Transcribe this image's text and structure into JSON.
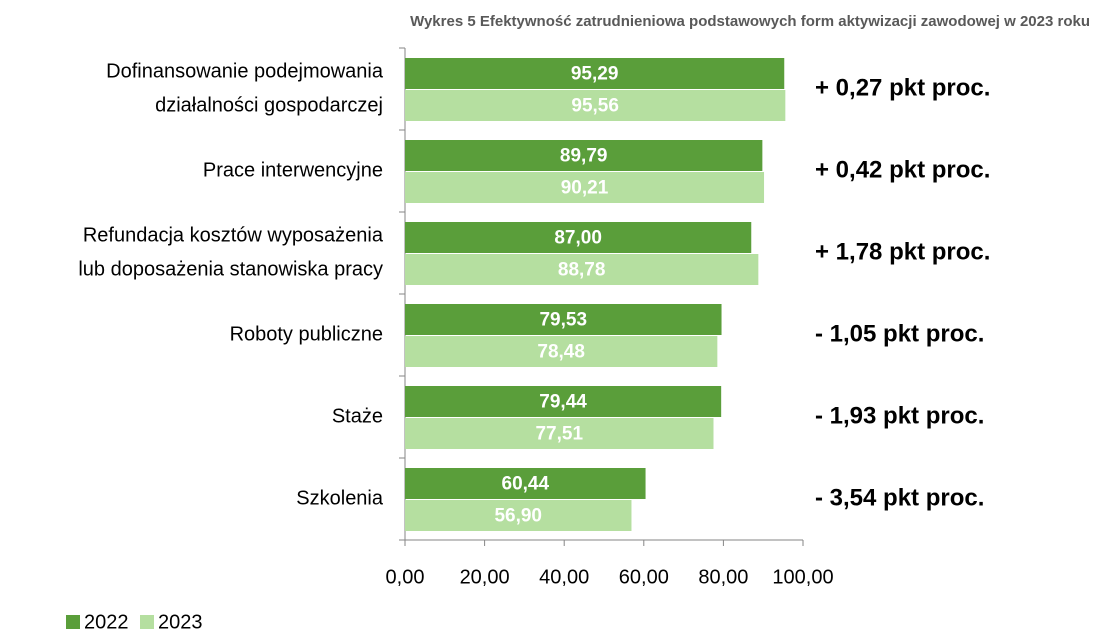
{
  "chart_data": {
    "type": "hbar",
    "title": "Wykres 5 Efektywność zatrudnieniowa podstawowych form aktywizacji zawodowej w 2023 roku",
    "categories": [
      [
        "Dofinansowanie podejmowania",
        "działalności gospodarczej"
      ],
      [
        "Prace interwencyjne"
      ],
      [
        "Refundacja kosztów wyposażenia",
        "lub doposażenia stanowiska pracy"
      ],
      [
        "Roboty publiczne"
      ],
      [
        "Staże"
      ],
      [
        "Szkolenia"
      ]
    ],
    "series": [
      {
        "name": "2022",
        "color": "#5a9e3a",
        "values": [
          95.29,
          89.79,
          87.0,
          79.53,
          79.44,
          60.44
        ],
        "value_labels": [
          "95,29",
          "89,79",
          "87,00",
          "79,53",
          "79,44",
          "60,44"
        ]
      },
      {
        "name": "2023",
        "color": "#b5dfa0",
        "values": [
          95.56,
          90.21,
          88.78,
          78.48,
          77.51,
          56.9
        ],
        "value_labels": [
          "95,56",
          "90,21",
          "88,78",
          "78,48",
          "77,51",
          "56,90"
        ]
      }
    ],
    "annotations": [
      "+ 0,27 pkt proc.",
      "+ 0,42 pkt proc.",
      "+ 1,78 pkt proc.",
      "- 1,05 pkt proc.",
      "- 1,93 pkt proc.",
      "- 3,54 pkt proc."
    ],
    "xlim": [
      0,
      100
    ],
    "xticks": [
      {
        "value": 0,
        "label": "0,00"
      },
      {
        "value": 20,
        "label": "20,00"
      },
      {
        "value": 40,
        "label": "40,00"
      },
      {
        "value": 60,
        "label": "60,00"
      },
      {
        "value": 80,
        "label": "80,00"
      },
      {
        "value": 100,
        "label": "100,00"
      }
    ],
    "legend": "bottom-left"
  }
}
